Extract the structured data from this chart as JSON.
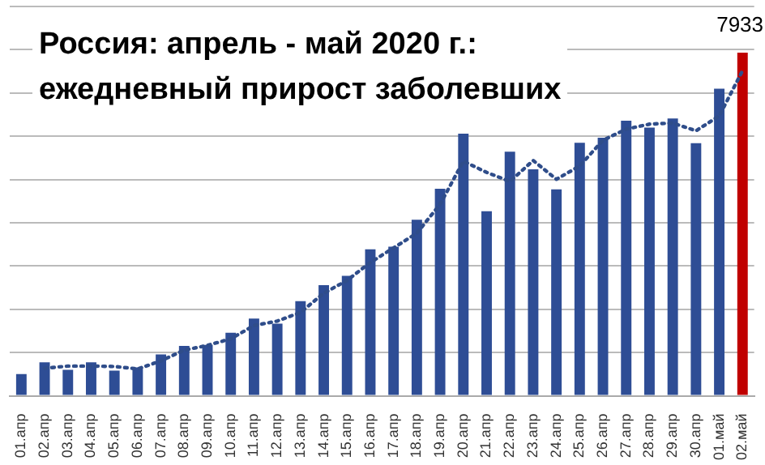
{
  "chart_data": {
    "type": "bar",
    "title": [
      "Россия: апрель - май 2020 г.:",
      "ежедневный прирост заболевших"
    ],
    "categories": [
      "01.апр",
      "02.апр",
      "03.апр",
      "04.апр",
      "05.апр",
      "06.апр",
      "07.апр",
      "08.апр",
      "09.апр",
      "10.апр",
      "11.апр",
      "12.апр",
      "13.апр",
      "14.апр",
      "15.апр",
      "16.апр",
      "17.апр",
      "18.апр",
      "19.апр",
      "20.апр",
      "21.апр",
      "22.апр",
      "23.апр",
      "24.апр",
      "25.апр",
      "26.апр",
      "27.апр",
      "28.апр",
      "29.апр",
      "30.апр",
      "01.май",
      "02.май"
    ],
    "series": [
      {
        "values": [
          500,
          771,
          601,
          771,
          582,
          658,
          954,
          1154,
          1175,
          1459,
          1786,
          1667,
          2186,
          2558,
          2774,
          3388,
          3448,
          4070,
          4785,
          6060,
          4268,
          5642,
          5236,
          4774,
          5849,
          5966,
          6361,
          6198,
          6411,
          5841,
          7099,
          7933
        ],
        "colors": [
          "#2e4d95",
          "#2e4d95",
          "#2e4d95",
          "#2e4d95",
          "#2e4d95",
          "#2e4d95",
          "#2e4d95",
          "#2e4d95",
          "#2e4d95",
          "#2e4d95",
          "#2e4d95",
          "#2e4d95",
          "#2e4d95",
          "#2e4d95",
          "#2e4d95",
          "#2e4d95",
          "#2e4d95",
          "#2e4d95",
          "#2e4d95",
          "#2e4d95",
          "#2e4d95",
          "#2e4d95",
          "#2e4d95",
          "#2e4d95",
          "#2e4d95",
          "#2e4d95",
          "#2e4d95",
          "#2e4d95",
          "#2e4d95",
          "#2e4d95",
          "#2e4d95",
          "#c00000"
        ],
        "value_labels": [
          null,
          null,
          null,
          null,
          null,
          null,
          null,
          null,
          null,
          null,
          null,
          null,
          null,
          null,
          null,
          null,
          null,
          null,
          null,
          null,
          null,
          null,
          null,
          null,
          null,
          null,
          null,
          null,
          null,
          null,
          null,
          "7933"
        ]
      },
      {
        "type": "line",
        "color": "#2f4d8a",
        "marker": "none",
        "line_style": "dotted",
        "values": [
          null,
          636,
          686,
          686,
          677,
          620,
          806,
          1054,
          1165,
          1317,
          1623,
          1727,
          1927,
          2372,
          2666,
          3081,
          3418,
          3759,
          4428,
          5423,
          5164,
          4955,
          5439,
          5005,
          5312,
          5908,
          6164,
          6280,
          6305,
          6126,
          6470,
          7516
        ]
      }
    ],
    "ylim": [
      0,
      9000
    ],
    "yticks": [
      {
        "value": 0,
        "label": null
      },
      {
        "value": 1000,
        "label": null
      },
      {
        "value": 2000,
        "label": null
      },
      {
        "value": 3000,
        "label": null
      },
      {
        "value": 4000,
        "label": null
      },
      {
        "value": 5000,
        "label": null
      },
      {
        "value": 6000,
        "label": null
      },
      {
        "value": 7000,
        "label": null
      },
      {
        "value": 8000,
        "label": null
      },
      {
        "value": 9000,
        "label": null
      }
    ],
    "grid": "y",
    "tick_labels": "x"
  }
}
